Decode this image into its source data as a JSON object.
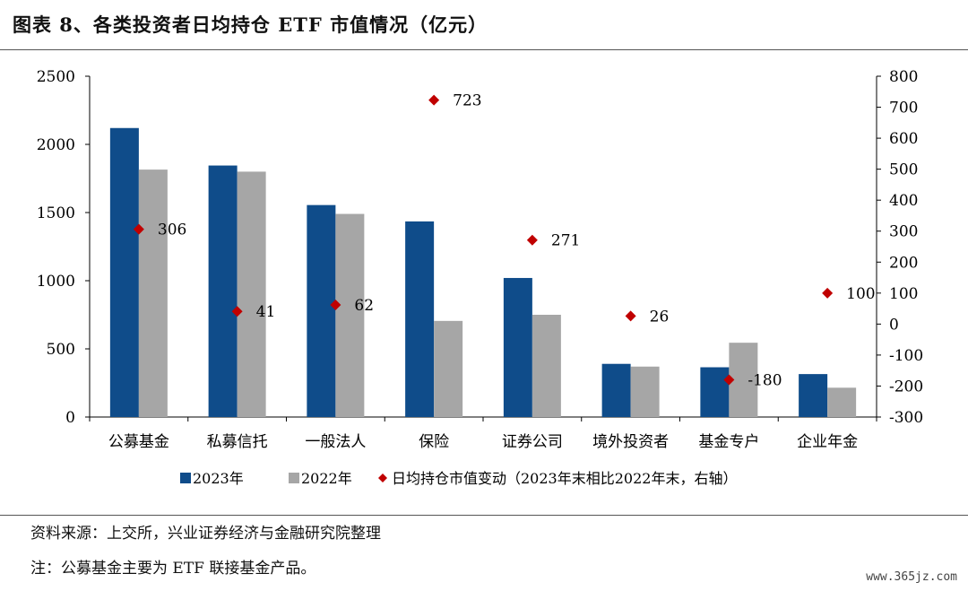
{
  "title": "图表 8、各类投资者日均持仓 ETF 市值情况（亿元）",
  "source": "资料来源：上交所，兴业证券经济与金融研究院整理",
  "note": "注：公募基金主要为 ETF 联接基金产品。",
  "watermark": "www.365jz.com",
  "colors": {
    "s2023": "#0F4C8A",
    "s2022": "#A6A6A6",
    "change": "#C00000"
  },
  "chart_data": {
    "type": "bar",
    "categories": [
      "公募基金",
      "私募信托",
      "一般法人",
      "保险",
      "证券公司",
      "境外投资者",
      "基金专户",
      "企业年金"
    ],
    "series": [
      {
        "name": "2023年",
        "axis": "left",
        "values": [
          2120,
          1845,
          1555,
          1435,
          1020,
          390,
          365,
          315
        ]
      },
      {
        "name": "2022年",
        "axis": "left",
        "values": [
          1815,
          1800,
          1490,
          705,
          750,
          370,
          545,
          215
        ]
      },
      {
        "name": "日均持仓市值变动（2023年末相比2022年末，右轴）",
        "axis": "right",
        "marker": "diamond",
        "values": [
          306,
          41,
          62,
          723,
          271,
          26,
          -180,
          100
        ]
      }
    ],
    "data_labels": [
      "306",
      "41",
      "62",
      "723",
      "271",
      "26",
      "-180",
      "100"
    ],
    "y_left": {
      "min": 0,
      "max": 2500,
      "ticks": [
        "0",
        "500",
        "1000",
        "1500",
        "2000",
        "2500"
      ]
    },
    "y_right": {
      "min": -300,
      "max": 800,
      "ticks": [
        "-300",
        "-200",
        "-100",
        "0",
        "100",
        "200",
        "300",
        "400",
        "500",
        "600",
        "700",
        "800"
      ]
    },
    "grid": false,
    "legend_position": "bottom"
  }
}
